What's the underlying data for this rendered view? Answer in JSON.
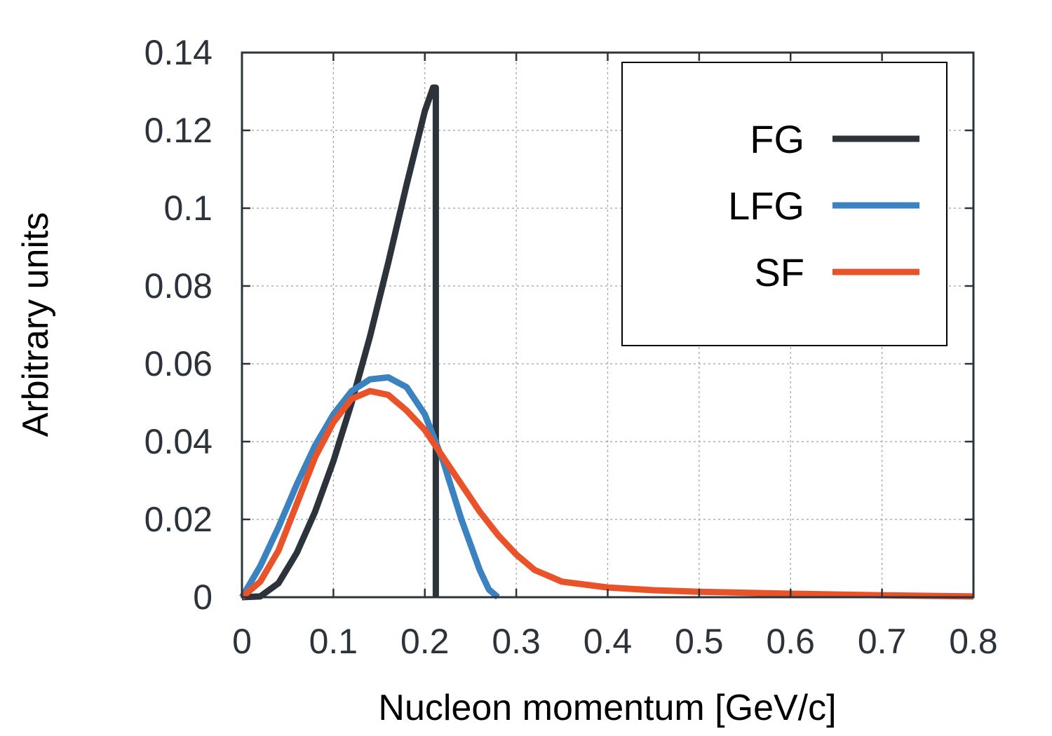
{
  "chart_data": {
    "type": "line",
    "xlabel": "Nucleon momentum [GeV/c]",
    "ylabel": "Arbitrary units",
    "xlim": [
      0,
      0.8
    ],
    "ylim": [
      0,
      0.14
    ],
    "xticks": [
      "0",
      "0.1",
      "0.2",
      "0.3",
      "0.4",
      "0.5",
      "0.6",
      "0.7",
      "0.8"
    ],
    "yticks": [
      "0",
      "0.02",
      "0.04",
      "0.06",
      "0.08",
      "0.1",
      "0.12",
      "0.14"
    ],
    "grid": true,
    "legend_position": "top-right",
    "series": [
      {
        "name": "FG",
        "color": "#2d333b",
        "x": [
          0,
          0.02,
          0.04,
          0.06,
          0.08,
          0.1,
          0.12,
          0.14,
          0.16,
          0.18,
          0.2,
          0.209,
          0.212,
          0.212,
          0.212,
          0.212
        ],
        "y": [
          0,
          0.0002,
          0.0036,
          0.0114,
          0.022,
          0.035,
          0.05,
          0.067,
          0.086,
          0.106,
          0.125,
          0.131,
          0.131,
          0.09,
          0.03,
          0
        ]
      },
      {
        "name": "LFG",
        "color": "#3a82c0",
        "x": [
          0,
          0.02,
          0.04,
          0.06,
          0.08,
          0.1,
          0.12,
          0.14,
          0.16,
          0.18,
          0.2,
          0.22,
          0.24,
          0.26,
          0.27,
          0.28
        ],
        "y": [
          0,
          0.008,
          0.018,
          0.029,
          0.039,
          0.047,
          0.053,
          0.056,
          0.0565,
          0.054,
          0.047,
          0.035,
          0.02,
          0.007,
          0.002,
          0
        ]
      },
      {
        "name": "SF",
        "color": "#e8532a",
        "x": [
          0,
          0.02,
          0.04,
          0.06,
          0.08,
          0.1,
          0.12,
          0.14,
          0.16,
          0.18,
          0.2,
          0.22,
          0.24,
          0.26,
          0.28,
          0.3,
          0.32,
          0.35,
          0.4,
          0.45,
          0.5,
          0.6,
          0.7,
          0.8
        ],
        "y": [
          0,
          0.004,
          0.012,
          0.024,
          0.036,
          0.045,
          0.051,
          0.053,
          0.052,
          0.048,
          0.043,
          0.036,
          0.029,
          0.022,
          0.016,
          0.011,
          0.007,
          0.004,
          0.0025,
          0.0018,
          0.0014,
          0.0009,
          0.0005,
          0.0002
        ]
      }
    ]
  }
}
